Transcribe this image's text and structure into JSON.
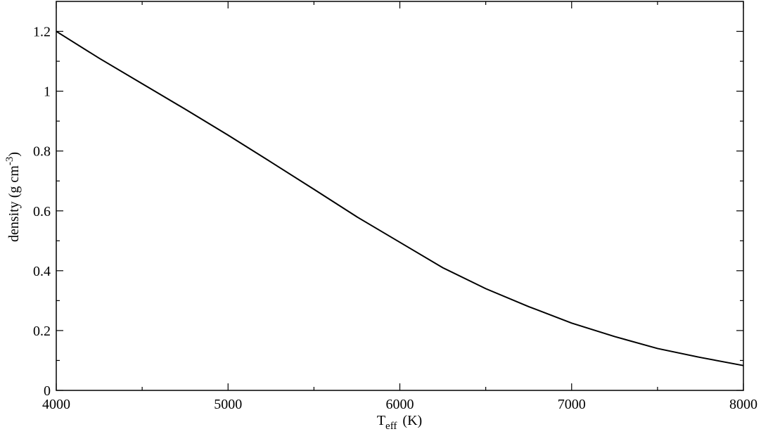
{
  "chart_data": {
    "type": "line",
    "xlabel": {
      "main": "T",
      "sub": "eff",
      "rest": "(K)"
    },
    "ylabel": {
      "main": "density (g cm",
      "sup": "-3",
      "rest": ")"
    },
    "x": [
      4000,
      4250,
      4500,
      4750,
      5000,
      5250,
      5500,
      5750,
      6000,
      6250,
      6500,
      6750,
      7000,
      7250,
      7500,
      7750,
      8000
    ],
    "series": [
      {
        "color": "#000000",
        "values": [
          1.2,
          1.11,
          1.025,
          0.94,
          0.853,
          0.763,
          0.672,
          0.58,
          0.495,
          0.41,
          0.34,
          0.28,
          0.225,
          0.18,
          0.14,
          0.11,
          0.083
        ]
      }
    ],
    "xlim": [
      4000,
      8000
    ],
    "xticks": [
      4000,
      5000,
      6000,
      7000,
      8000
    ],
    "ylim": [
      0,
      1.3
    ],
    "yticks": [
      0,
      0.2,
      0.4,
      0.6,
      0.8,
      1,
      1.2
    ]
  }
}
